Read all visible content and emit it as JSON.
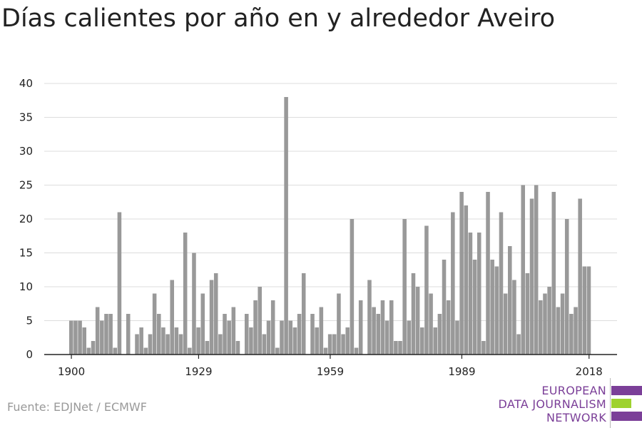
{
  "title": "Días calientes por año en y alrededor Aveiro",
  "source": "Fuente: EDJNet / ECMWF",
  "logo": {
    "line1": "EUROPEAN",
    "line2": "DATA JOURNALISM",
    "line3": "NETWORK",
    "colors": {
      "purple": "#7b3f98",
      "green": "#9ed22f"
    }
  },
  "chart_data": {
    "type": "bar",
    "title": "Días calientes por año en y alrededor Aveiro",
    "xlabel": "",
    "ylabel": "",
    "x_start": 1900,
    "x_end": 2019,
    "x_ticks": [
      1900,
      1929,
      1959,
      1989,
      2018
    ],
    "y_ticks": [
      0,
      5,
      10,
      15,
      20,
      25,
      30,
      35,
      40
    ],
    "ylim": [
      0,
      40
    ],
    "grid": true,
    "bar_color": "#999999",
    "values": [
      5,
      5,
      5,
      4,
      1,
      2,
      7,
      5,
      6,
      6,
      1,
      21,
      0,
      6,
      0,
      3,
      4,
      1,
      3,
      9,
      6,
      4,
      3,
      11,
      4,
      3,
      18,
      1,
      15,
      4,
      9,
      2,
      11,
      12,
      3,
      6,
      5,
      7,
      2,
      0,
      6,
      4,
      8,
      10,
      3,
      5,
      8,
      1,
      5,
      38,
      5,
      4,
      6,
      12,
      0,
      6,
      4,
      7,
      1,
      3,
      3,
      9,
      3,
      4,
      20,
      1,
      8,
      0,
      11,
      7,
      6,
      8,
      5,
      8,
      2,
      2,
      20,
      5,
      12,
      10,
      4,
      19,
      9,
      4,
      6,
      14,
      8,
      21,
      5,
      24,
      22,
      18,
      14,
      18,
      2,
      24,
      14,
      13,
      21,
      9,
      16,
      11,
      3,
      25,
      12,
      23,
      25,
      8,
      9,
      10,
      24,
      7,
      9,
      20,
      6,
      7,
      23,
      13,
      13
    ]
  }
}
